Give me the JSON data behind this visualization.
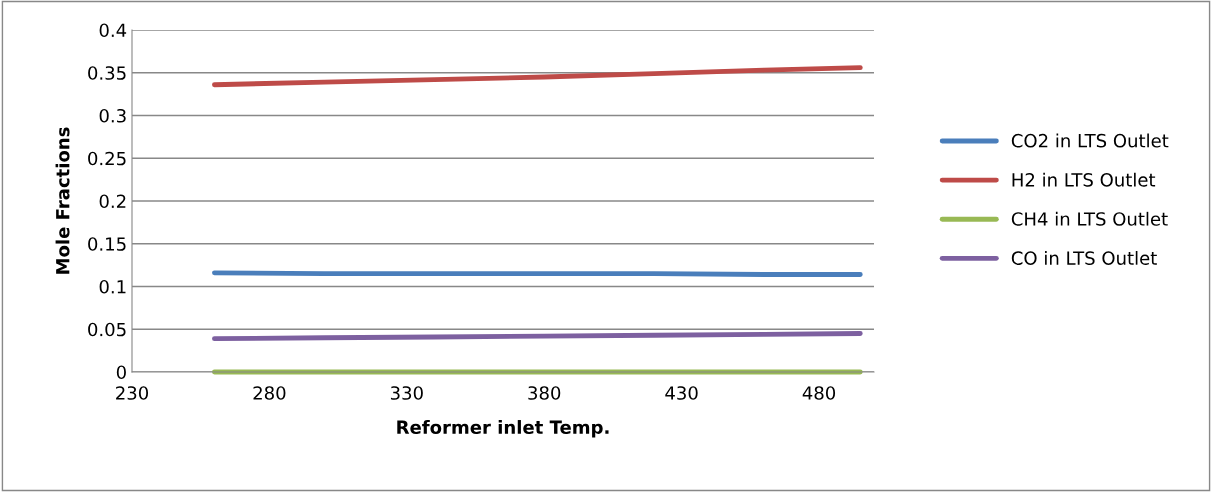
{
  "chart_data": {
    "type": "line",
    "xlabel": "Reformer inlet Temp.",
    "ylabel": "Mole Fractions",
    "x": [
      260,
      300,
      340,
      380,
      420,
      460,
      495
    ],
    "series": [
      {
        "name": "CO2 in LTS Outlet",
        "color": "#4a7ebb",
        "values": [
          0.116,
          0.115,
          0.115,
          0.115,
          0.115,
          0.114,
          0.114
        ]
      },
      {
        "name": "H2 in LTS Outlet",
        "color": "#be4b48",
        "values": [
          0.336,
          0.339,
          0.342,
          0.345,
          0.349,
          0.353,
          0.356
        ]
      },
      {
        "name": "CH4 in LTS Outlet",
        "color": "#98b954",
        "values": [
          0,
          0,
          0,
          0,
          0,
          0,
          0
        ]
      },
      {
        "name": "CO in LTS Outlet",
        "color": "#7d60a0",
        "values": [
          0.039,
          0.04,
          0.041,
          0.042,
          0.043,
          0.044,
          0.045
        ]
      }
    ],
    "xlim": [
      230,
      500
    ],
    "xticks": [
      230,
      280,
      330,
      380,
      430,
      480
    ],
    "ylim": [
      0,
      0.4
    ],
    "yticks": [
      {
        "value": 0,
        "label": "0"
      },
      0.05,
      0.1,
      0.15,
      0.2,
      0.25,
      0.3,
      0.35,
      0.4
    ],
    "grid": "y",
    "legend": "right",
    "marker": "none",
    "line_style": "solid"
  }
}
